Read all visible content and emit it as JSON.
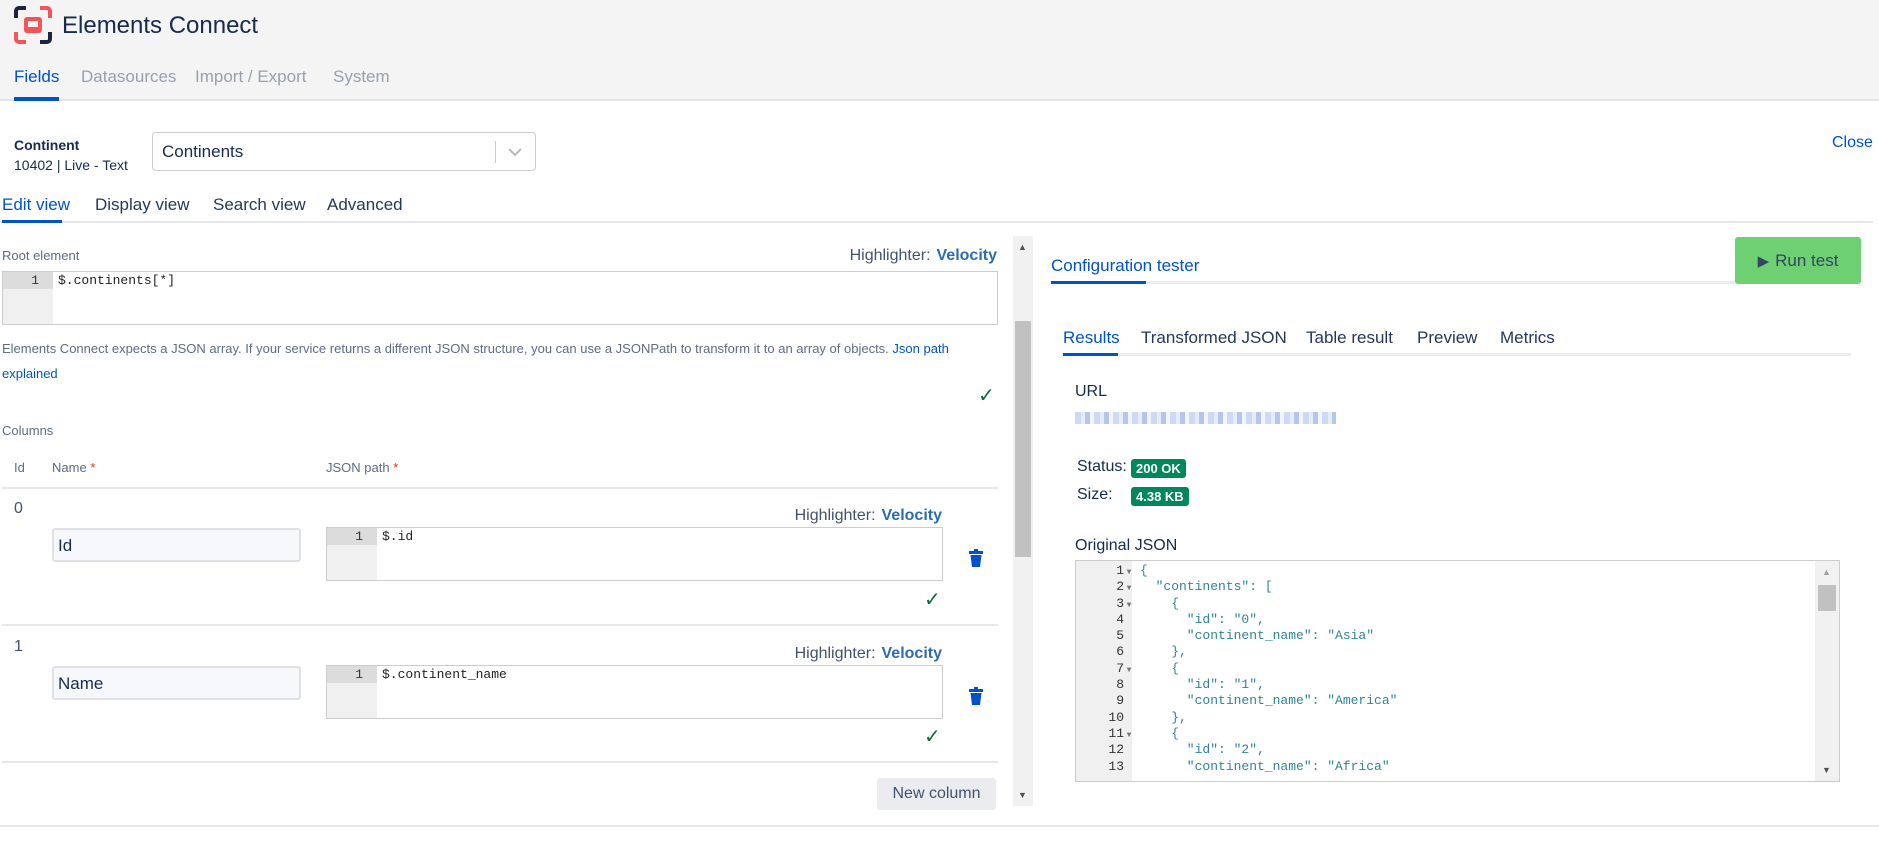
{
  "app": {
    "title": "Elements Connect",
    "logo": "elements-connect-logo"
  },
  "nav": {
    "tabs": [
      {
        "label": "Fields",
        "active": true
      },
      {
        "label": "Datasources"
      },
      {
        "label": "Import / Export"
      },
      {
        "label": "System"
      }
    ]
  },
  "field": {
    "name": "Continent",
    "meta": "10402 | Live - Text",
    "datasource": "Continents",
    "close_label": "Close"
  },
  "subtabs": [
    {
      "label": "Edit view",
      "active": true
    },
    {
      "label": "Display view"
    },
    {
      "label": "Search view"
    },
    {
      "label": "Advanced"
    }
  ],
  "edit": {
    "root_label": "Root element",
    "highlighter_label": "Highlighter:",
    "highlighter_value": "Velocity",
    "root_value": "$.continents[*]",
    "help_text": "Elements Connect expects a JSON array. If your service returns a different JSON structure, you can use a JSONPath to transform it to an array of objects.",
    "help_link": "Json path explained",
    "columns_label": "Columns",
    "col_headers": {
      "id": "Id",
      "name": "Name",
      "path": "JSON path",
      "required": "*"
    },
    "columns": [
      {
        "id": "0",
        "name": "Id",
        "path": "$.id"
      },
      {
        "id": "1",
        "name": "Name",
        "path": "$.continent_name"
      }
    ],
    "new_column_label": "New column"
  },
  "tester": {
    "title": "Configuration tester",
    "run_label": "Run test",
    "tabs": [
      {
        "label": "Results",
        "active": true
      },
      {
        "label": "Transformed JSON"
      },
      {
        "label": "Table result"
      },
      {
        "label": "Preview"
      },
      {
        "label": "Metrics"
      }
    ],
    "url_label": "URL",
    "status_label": "Status:",
    "status_value": "200 OK",
    "size_label": "Size:",
    "size_value": "4.38 KB",
    "original_json_label": "Original JSON",
    "json_lines": [
      "{",
      "  \"continents\": [",
      "    {",
      "      \"id\": \"0\",",
      "      \"continent_name\": \"Asia\"",
      "    },",
      "    {",
      "      \"id\": \"1\",",
      "      \"continent_name\": \"America\"",
      "    },",
      "    {",
      "      \"id\": \"2\",",
      "      \"continent_name\": \"Africa\""
    ],
    "fold_lines": [
      1,
      2,
      3,
      7,
      11
    ]
  },
  "colors": {
    "accent": "#0052cc",
    "run_button": "#6dd072",
    "badge": "#00875a",
    "check": "#0b6b3a"
  }
}
